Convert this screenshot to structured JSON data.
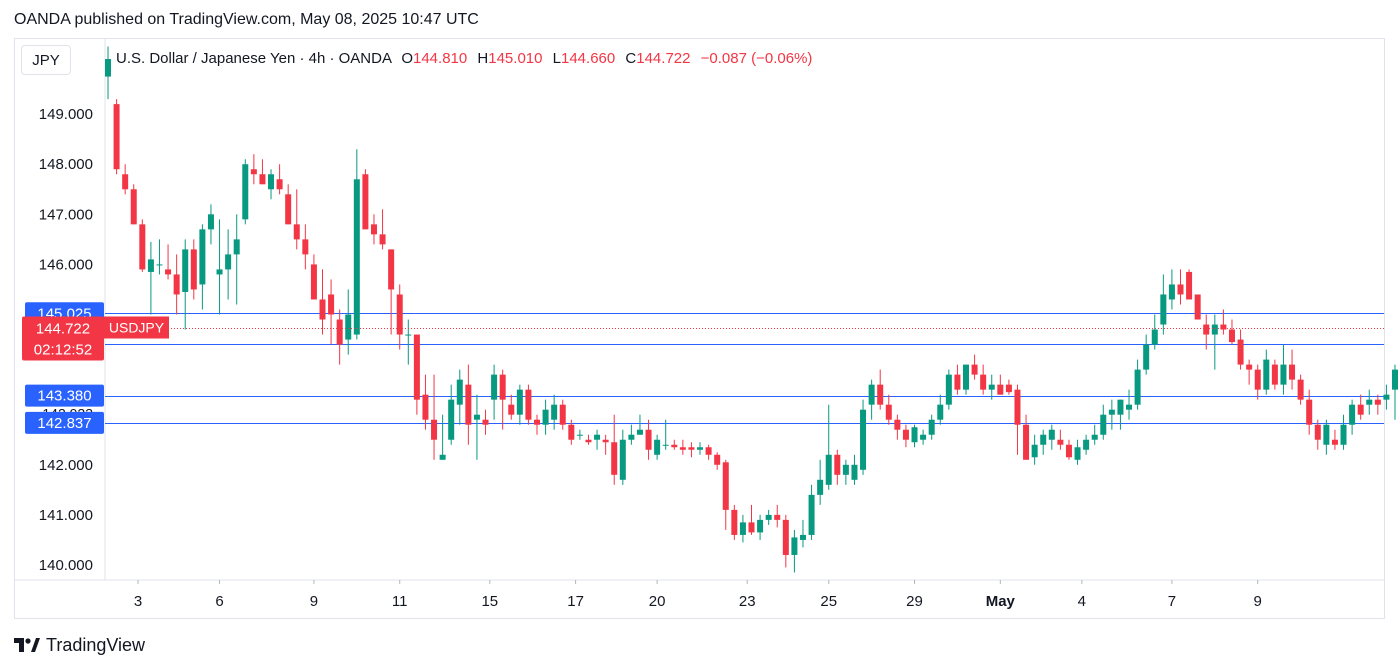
{
  "header": {
    "publisher": "OANDA published on TradingView.com, May 08, 2025 10:47 UTC"
  },
  "symbol_box": "JPY",
  "legend": {
    "name": "U.S. Dollar / Japanese Yen · 4h · OANDA",
    "o_label": "O",
    "o": "144.810",
    "h_label": "H",
    "h": "145.010",
    "l_label": "L",
    "l": "144.660",
    "c_label": "C",
    "c": "144.722",
    "change": "−0.087 (−0.06%)"
  },
  "footer": {
    "brand": "TradingView"
  },
  "colors": {
    "up": "#089981",
    "down": "#f23645",
    "level": "#2962ff",
    "grid": "#e0e3eb"
  },
  "chart_data": {
    "type": "candlestick",
    "ylim": [
      139.7,
      150.5
    ],
    "y_ticks": [
      "140.000",
      "141.000",
      "142.000",
      "146.000",
      "147.000",
      "148.000",
      "149.000"
    ],
    "x_ticks": [
      "3",
      "6",
      "9",
      "11",
      "15",
      "17",
      "20",
      "23",
      "25",
      "29",
      "May",
      "4",
      "7",
      "9"
    ],
    "x_tick_positions": [
      3.5,
      13,
      24,
      34,
      44.5,
      54.5,
      64,
      74.5,
      84,
      94,
      104,
      113.5,
      124,
      134
    ],
    "levels": [
      {
        "value": 145.025,
        "label": "145.025"
      },
      {
        "value": 144.406,
        "label": "144.406"
      },
      {
        "value": 143.38,
        "label": "143.380"
      },
      {
        "value": 142.837,
        "label": "142.837"
      }
    ],
    "hidden_level_label": "142.923",
    "last_price": {
      "value": 144.722,
      "price_label": "144.722",
      "symbol_label": "USDJPY",
      "countdown": "02:12:52"
    },
    "candles": [
      [
        0,
        149.75,
        150.35,
        149.3,
        150.1
      ],
      [
        1,
        149.2,
        149.3,
        147.8,
        147.9
      ],
      [
        2,
        147.8,
        148.0,
        147.4,
        147.5
      ],
      [
        3,
        147.5,
        147.6,
        146.8,
        146.8
      ],
      [
        4,
        146.8,
        146.9,
        145.85,
        145.9
      ],
      [
        5,
        145.85,
        146.45,
        145.0,
        146.1
      ],
      [
        6,
        146.0,
        146.5,
        145.8,
        146.0
      ],
      [
        7,
        145.9,
        146.4,
        145.7,
        145.8
      ],
      [
        8,
        145.8,
        146.2,
        145.0,
        145.4
      ],
      [
        9,
        145.45,
        146.5,
        144.7,
        146.3
      ],
      [
        10,
        146.3,
        146.5,
        145.3,
        145.5
      ],
      [
        11,
        145.6,
        146.8,
        145.1,
        146.7
      ],
      [
        12,
        146.7,
        147.2,
        146.4,
        147.0
      ],
      [
        13,
        145.8,
        146.9,
        145.0,
        145.9
      ],
      [
        14,
        145.9,
        146.7,
        145.3,
        146.2
      ],
      [
        15,
        146.2,
        147.0,
        145.2,
        146.5
      ],
      [
        16,
        146.9,
        148.1,
        146.8,
        148.0
      ],
      [
        17,
        147.9,
        148.2,
        147.6,
        147.8
      ],
      [
        18,
        147.8,
        148.1,
        147.6,
        147.6
      ],
      [
        19,
        147.5,
        147.9,
        147.3,
        147.8
      ],
      [
        20,
        147.7,
        148.0,
        147.4,
        147.5
      ],
      [
        21,
        147.4,
        147.6,
        146.8,
        146.8
      ],
      [
        22,
        146.8,
        147.5,
        146.3,
        146.5
      ],
      [
        23,
        146.5,
        146.8,
        145.9,
        146.2
      ],
      [
        24,
        146.0,
        146.2,
        145.3,
        145.3
      ],
      [
        25,
        145.3,
        145.9,
        144.6,
        144.9
      ],
      [
        26,
        145.4,
        145.7,
        144.4,
        145.0
      ],
      [
        27,
        144.9,
        145.1,
        144.0,
        144.4
      ],
      [
        28,
        144.5,
        145.5,
        144.2,
        145.0
      ],
      [
        29,
        144.6,
        148.3,
        144.5,
        147.7
      ],
      [
        30,
        147.8,
        147.9,
        146.7,
        146.7
      ],
      [
        31,
        146.8,
        147.0,
        146.4,
        146.6
      ],
      [
        32,
        146.6,
        147.1,
        146.3,
        146.4
      ],
      [
        33,
        146.3,
        146.3,
        144.6,
        145.5
      ],
      [
        34,
        145.4,
        145.6,
        144.3,
        144.6
      ],
      [
        35,
        144.6,
        144.9,
        144.0,
        144.6
      ],
      [
        36,
        144.6,
        144.6,
        143.0,
        143.3
      ],
      [
        37,
        143.4,
        143.8,
        142.7,
        142.9
      ],
      [
        38,
        142.9,
        143.8,
        142.1,
        142.5
      ],
      [
        39,
        142.1,
        143.0,
        142.1,
        142.2
      ],
      [
        40,
        142.5,
        143.6,
        142.4,
        143.3
      ],
      [
        41,
        143.2,
        143.9,
        142.8,
        143.7
      ],
      [
        42,
        143.6,
        144.0,
        142.4,
        142.8
      ],
      [
        43,
        142.9,
        143.4,
        142.1,
        143.0
      ],
      [
        44,
        142.9,
        143.1,
        142.6,
        142.8
      ],
      [
        45,
        143.3,
        144.0,
        142.9,
        143.8
      ],
      [
        46,
        143.8,
        143.9,
        142.7,
        143.3
      ],
      [
        47,
        143.2,
        143.4,
        142.9,
        143.0
      ],
      [
        48,
        143.0,
        143.6,
        142.8,
        143.5
      ],
      [
        49,
        143.5,
        143.6,
        142.8,
        142.9
      ],
      [
        50,
        142.9,
        143.0,
        142.6,
        142.8
      ],
      [
        51,
        142.8,
        143.3,
        142.6,
        143.1
      ],
      [
        52,
        142.9,
        143.4,
        142.7,
        143.2
      ],
      [
        53,
        143.2,
        143.3,
        142.7,
        142.8
      ],
      [
        54,
        142.8,
        142.9,
        142.4,
        142.5
      ],
      [
        55,
        142.6,
        142.7,
        142.5,
        142.6
      ],
      [
        56,
        142.5,
        142.6,
        142.4,
        142.45
      ],
      [
        57,
        142.5,
        142.7,
        142.3,
        142.6
      ],
      [
        58,
        142.5,
        142.6,
        142.2,
        142.45
      ],
      [
        59,
        142.45,
        143.0,
        141.6,
        141.8
      ],
      [
        60,
        141.7,
        142.7,
        141.6,
        142.5
      ],
      [
        61,
        142.5,
        142.8,
        142.4,
        142.6
      ],
      [
        62,
        142.6,
        143.0,
        142.6,
        142.7
      ],
      [
        63,
        142.7,
        142.9,
        142.1,
        142.3
      ],
      [
        64,
        142.2,
        142.6,
        142.1,
        142.5
      ],
      [
        65,
        142.4,
        142.9,
        142.3,
        142.4
      ],
      [
        66,
        142.4,
        142.5,
        142.3,
        142.35
      ],
      [
        67,
        142.35,
        142.5,
        142.2,
        142.3
      ],
      [
        68,
        142.35,
        142.45,
        142.15,
        142.3
      ],
      [
        69,
        142.3,
        142.45,
        142.2,
        142.35
      ],
      [
        70,
        142.35,
        142.4,
        142.1,
        142.2
      ],
      [
        71,
        142.2,
        142.25,
        141.9,
        142.0
      ],
      [
        72,
        142.05,
        142.1,
        140.7,
        141.1
      ],
      [
        73,
        141.1,
        141.2,
        140.5,
        140.6
      ],
      [
        74,
        140.6,
        141.0,
        140.45,
        140.85
      ],
      [
        75,
        140.85,
        141.2,
        140.6,
        140.65
      ],
      [
        76,
        140.65,
        141.0,
        140.5,
        140.9
      ],
      [
        77,
        140.9,
        141.1,
        140.8,
        141.0
      ],
      [
        78,
        141.0,
        141.2,
        140.75,
        140.9
      ],
      [
        79,
        140.9,
        141.0,
        139.95,
        140.2
      ],
      [
        80,
        140.2,
        140.7,
        139.85,
        140.55
      ],
      [
        81,
        140.5,
        140.9,
        140.35,
        140.6
      ],
      [
        82,
        140.6,
        141.6,
        140.5,
        141.4
      ],
      [
        83,
        141.4,
        142.1,
        141.2,
        141.7
      ],
      [
        84,
        141.6,
        143.2,
        141.5,
        142.2
      ],
      [
        85,
        142.2,
        142.3,
        141.6,
        141.8
      ],
      [
        86,
        141.8,
        142.1,
        141.6,
        142.0
      ],
      [
        87,
        141.7,
        142.2,
        141.6,
        142.0
      ],
      [
        88,
        141.9,
        143.3,
        141.8,
        143.1
      ],
      [
        89,
        143.2,
        143.7,
        142.9,
        143.6
      ],
      [
        90,
        143.6,
        143.9,
        143.1,
        143.2
      ],
      [
        91,
        143.2,
        143.4,
        142.8,
        142.9
      ],
      [
        92,
        142.9,
        143.0,
        142.5,
        142.7
      ],
      [
        93,
        142.7,
        142.8,
        142.35,
        142.5
      ],
      [
        94,
        142.45,
        142.8,
        142.35,
        142.75
      ],
      [
        95,
        142.5,
        142.7,
        142.4,
        142.6
      ],
      [
        96,
        142.6,
        143.0,
        142.5,
        142.9
      ],
      [
        97,
        142.9,
        143.4,
        142.8,
        143.2
      ],
      [
        98,
        143.2,
        143.9,
        143.1,
        143.8
      ],
      [
        99,
        143.8,
        144.0,
        143.4,
        143.5
      ],
      [
        100,
        143.5,
        144.0,
        143.4,
        144.0
      ],
      [
        101,
        144.0,
        144.2,
        143.7,
        143.8
      ],
      [
        102,
        143.8,
        144.0,
        143.4,
        143.5
      ],
      [
        103,
        143.5,
        143.8,
        143.3,
        143.6
      ],
      [
        104,
        143.6,
        143.8,
        143.4,
        143.4
      ],
      [
        105,
        143.6,
        143.7,
        143.4,
        143.45
      ],
      [
        106,
        143.5,
        143.6,
        142.2,
        142.8
      ],
      [
        107,
        142.8,
        143.0,
        142.1,
        142.1
      ],
      [
        108,
        142.15,
        142.6,
        142.0,
        142.4
      ],
      [
        109,
        142.4,
        142.7,
        142.2,
        142.6
      ],
      [
        110,
        142.5,
        142.8,
        142.3,
        142.7
      ],
      [
        111,
        142.5,
        142.7,
        142.3,
        142.4
      ],
      [
        112,
        142.4,
        142.5,
        142.1,
        142.15
      ],
      [
        113,
        142.1,
        142.5,
        142.0,
        142.35
      ],
      [
        114,
        142.3,
        142.6,
        142.2,
        142.5
      ],
      [
        115,
        142.5,
        142.8,
        142.4,
        142.6
      ],
      [
        116,
        142.6,
        143.2,
        142.5,
        143.0
      ],
      [
        117,
        143.0,
        143.3,
        142.7,
        143.1
      ],
      [
        118,
        143.0,
        143.3,
        142.7,
        143.3
      ],
      [
        119,
        143.1,
        143.5,
        142.9,
        143.2
      ],
      [
        120,
        143.2,
        144.1,
        143.1,
        143.9
      ],
      [
        121,
        143.9,
        144.6,
        143.8,
        144.4
      ],
      [
        122,
        144.4,
        145.0,
        144.3,
        144.7
      ],
      [
        123,
        144.8,
        145.8,
        144.6,
        145.4
      ],
      [
        124,
        145.3,
        145.9,
        145.1,
        145.6
      ],
      [
        125,
        145.6,
        145.9,
        145.2,
        145.4
      ],
      [
        126,
        145.85,
        145.9,
        145.3,
        145.3
      ],
      [
        127,
        145.4,
        145.4,
        144.9,
        144.9
      ],
      [
        128,
        144.8,
        145.0,
        144.3,
        144.6
      ],
      [
        129,
        144.6,
        145.0,
        143.9,
        144.8
      ],
      [
        130,
        144.8,
        145.1,
        144.6,
        144.7
      ],
      [
        131,
        144.7,
        144.9,
        144.4,
        144.45
      ],
      [
        132,
        144.5,
        144.7,
        143.9,
        144.0
      ],
      [
        133,
        144.0,
        144.1,
        143.6,
        143.9
      ],
      [
        134,
        143.9,
        144.0,
        143.3,
        143.5
      ],
      [
        135,
        143.5,
        144.3,
        143.4,
        144.1
      ],
      [
        136,
        144.0,
        144.1,
        143.5,
        143.6
      ],
      [
        137,
        143.6,
        144.4,
        143.4,
        144.0
      ],
      [
        138,
        144.0,
        144.3,
        143.5,
        143.7
      ],
      [
        139,
        143.7,
        143.8,
        143.2,
        143.3
      ],
      [
        140,
        143.3,
        143.5,
        142.6,
        142.8
      ],
      [
        141,
        142.8,
        142.9,
        142.3,
        142.5
      ],
      [
        142,
        142.4,
        142.9,
        142.2,
        142.8
      ],
      [
        143,
        142.5,
        142.7,
        142.3,
        142.4
      ],
      [
        144,
        142.4,
        143.0,
        142.3,
        142.8
      ],
      [
        145,
        142.8,
        143.3,
        142.6,
        143.2
      ],
      [
        146,
        143.2,
        143.4,
        142.9,
        143.0
      ],
      [
        147,
        143.2,
        143.5,
        143.0,
        143.3
      ],
      [
        148,
        143.3,
        143.4,
        143.0,
        143.2
      ],
      [
        149,
        143.3,
        143.6,
        143.1,
        143.4
      ],
      [
        150,
        143.5,
        144.0,
        142.9,
        143.9
      ],
      [
        151,
        143.9,
        144.0,
        143.4,
        143.8
      ],
      [
        152,
        143.8,
        144.1,
        143.6,
        143.9
      ],
      [
        153,
        143.9,
        144.9,
        143.8,
        144.85
      ],
      [
        154,
        144.81,
        145.01,
        144.66,
        144.722
      ]
    ]
  }
}
